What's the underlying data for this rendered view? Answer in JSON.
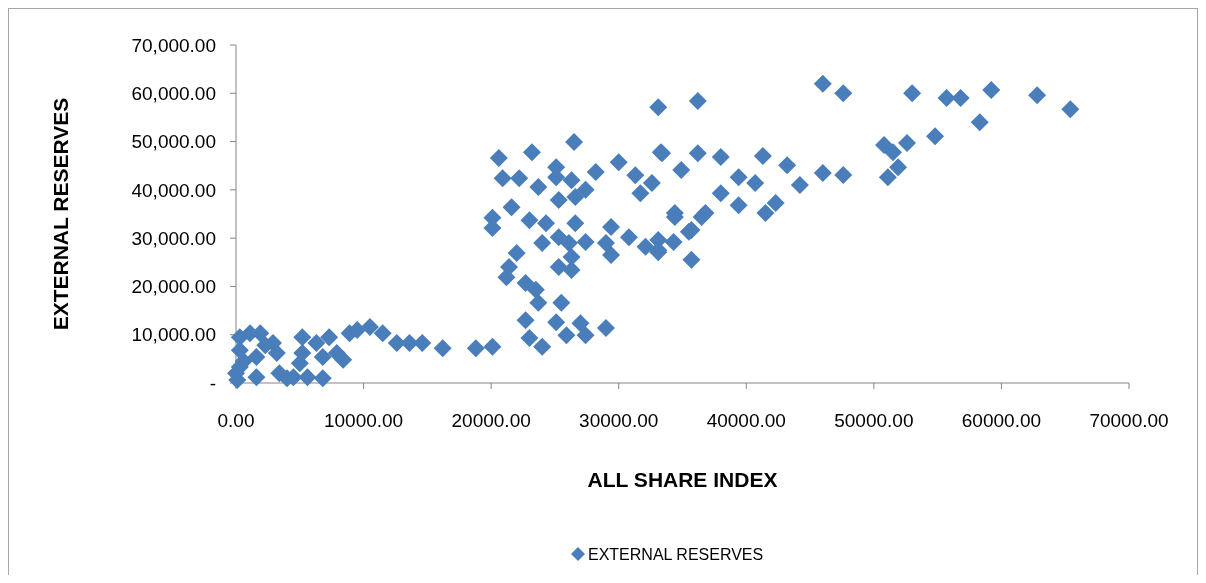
{
  "chart_data": {
    "type": "scatter",
    "xlabel": "ALL SHARE INDEX",
    "ylabel": "EXTERNAL RESERVES",
    "legend": "bottom",
    "marker": "diamond",
    "grid": false,
    "xlim": [
      0,
      70000
    ],
    "ylim": [
      0,
      70000
    ],
    "xticks": [
      {
        "value": 0,
        "label": "0.00"
      },
      {
        "value": 10000,
        "label": "10000.00"
      },
      {
        "value": 20000,
        "label": "20000.00"
      },
      {
        "value": 30000,
        "label": "30000.00"
      },
      {
        "value": 40000,
        "label": "40000.00"
      },
      {
        "value": 50000,
        "label": "50000.00"
      },
      {
        "value": 60000,
        "label": "60000.00"
      },
      {
        "value": 70000,
        "label": "70000.00"
      }
    ],
    "yticks": [
      {
        "value": 0,
        "label": "-"
      },
      {
        "value": 10000,
        "label": "10,000.00"
      },
      {
        "value": 20000,
        "label": "20,000.00"
      },
      {
        "value": 30000,
        "label": "30,000.00"
      },
      {
        "value": 40000,
        "label": "40,000.00"
      },
      {
        "value": 50000,
        "label": "50,000.00"
      },
      {
        "value": 60000,
        "label": "60,000.00"
      },
      {
        "value": 70000,
        "label": "70,000.00"
      }
    ],
    "series": [
      {
        "name": "EXTERNAL RESERVES",
        "color": "#4a7ebb",
        "x": [
          46000,
          47600,
          53000,
          55700,
          56800,
          59200,
          62800,
          65400,
          58300,
          54800,
          52600,
          50800,
          51500,
          51900,
          51100,
          47600,
          46000,
          44200,
          43200,
          41300,
          36200,
          33100,
          41500,
          42300,
          39400,
          38000,
          36500,
          35500,
          34300,
          33100,
          35700,
          34400,
          36200,
          38000,
          34900,
          39400,
          40700,
          33400,
          26500,
          23200,
          20600,
          20900,
          22200,
          25100,
          25100,
          28200,
          30000,
          31300,
          33300,
          32600,
          31700,
          23700,
          26300,
          27400,
          26600,
          20100,
          20100,
          21600,
          23000,
          24300,
          25300,
          26600,
          25300,
          24000,
          26100,
          27400,
          29400,
          29000,
          29400,
          30800,
          33100,
          34400,
          35700,
          36800,
          33100,
          32100,
          26300,
          26300,
          25300,
          22000,
          21400,
          21200,
          22700,
          23500,
          23700,
          25500,
          22700,
          25100,
          27000,
          29000,
          27400,
          25900,
          23000,
          24000,
          20100,
          18800,
          300,
          1900,
          1100,
          300,
          300,
          100,
          1600,
          2900,
          3200,
          1600,
          3400,
          4500,
          5600,
          6800,
          5200,
          6300,
          7300,
          5200,
          5000,
          6800,
          8400,
          8900,
          9500,
          10500,
          11500,
          12600,
          13600,
          14600,
          16200,
          7900,
          0,
          600,
          2300,
          4000
        ],
        "values": [
          62000,
          60000,
          60000,
          59000,
          59000,
          60700,
          59600,
          56700,
          54000,
          51100,
          49700,
          49300,
          47800,
          44700,
          42600,
          43100,
          43500,
          41000,
          45100,
          47000,
          58400,
          57100,
          35200,
          37300,
          36800,
          39300,
          34400,
          31300,
          29200,
          27100,
          25500,
          35200,
          47600,
          46800,
          44100,
          42600,
          41400,
          47600,
          49900,
          47800,
          46600,
          42400,
          42400,
          44700,
          42600,
          43700,
          45700,
          43000,
          47800,
          41400,
          39300,
          40600,
          42000,
          40000,
          38500,
          34200,
          32100,
          36400,
          33700,
          33100,
          37900,
          33100,
          30200,
          29000,
          29000,
          29200,
          32300,
          29000,
          26500,
          30200,
          29600,
          34400,
          31700,
          35200,
          27500,
          28200,
          26100,
          23400,
          24000,
          26900,
          24000,
          21900,
          20700,
          19300,
          16600,
          16600,
          13000,
          12600,
          12400,
          11400,
          9900,
          9900,
          9300,
          7500,
          7500,
          7200,
          9500,
          10300,
          10300,
          6800,
          3300,
          600,
          5400,
          8300,
          6200,
          1200,
          2000,
          1200,
          1200,
          1000,
          9500,
          8300,
          9500,
          6200,
          4100,
          5400,
          4800,
          10300,
          11000,
          11600,
          10300,
          8300,
          8300,
          8300,
          7200,
          6200,
          2000,
          4500,
          7800,
          1000
        ]
      }
    ]
  }
}
